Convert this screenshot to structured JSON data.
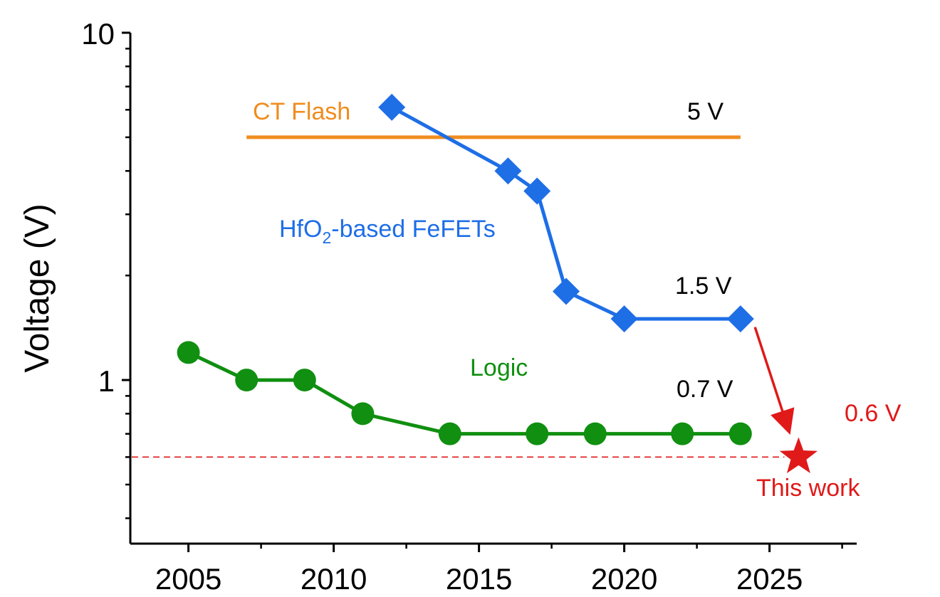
{
  "chart_data": {
    "type": "line",
    "title": "",
    "xlabel": "",
    "ylabel": "Voltage (V)",
    "yscale": "log",
    "xlim": [
      2003,
      2028
    ],
    "ylim": [
      0.338,
      10
    ],
    "x_ticks": [
      2005,
      2010,
      2015,
      2020,
      2025
    ],
    "x_tick_labels": [
      "2005",
      "2010",
      "2015",
      "2020",
      "2025"
    ],
    "y_ticks": [
      1,
      10
    ],
    "y_tick_labels": [
      "1",
      "10"
    ],
    "series": [
      {
        "name": "CT Flash",
        "color": "#f08c1e",
        "marker": "none",
        "x": [
          2007,
          2024
        ],
        "y": [
          5,
          5
        ],
        "label": "CT Flash",
        "value_label": "5 V"
      },
      {
        "name": "HfO2-based FeFETs",
        "color": "#1e6ee6",
        "marker": "diamond",
        "x": [
          2012,
          2016,
          2017,
          2018,
          2020,
          2024
        ],
        "y": [
          6.1,
          4.0,
          3.5,
          1.8,
          1.5,
          1.5
        ],
        "label_main": "HfO",
        "label_sub": "2",
        "label_rest": "-based FeFETs",
        "value_label": "1.5 V"
      },
      {
        "name": "Logic",
        "color": "#108f10",
        "marker": "circle",
        "x": [
          2005,
          2007,
          2009,
          2011,
          2014,
          2017,
          2019,
          2022,
          2024
        ],
        "y": [
          1.2,
          1.0,
          1.0,
          0.8,
          0.7,
          0.7,
          0.7,
          0.7,
          0.7
        ],
        "label": "Logic",
        "value_label": "0.7 V"
      }
    ],
    "this_work": {
      "x": 2026,
      "y": 0.6,
      "color": "#e01919",
      "marker": "star",
      "value_label": "0.6 V",
      "label": "This work",
      "arrow_from": {
        "x": 2024.5,
        "y": 1.42
      },
      "reference_line_y": 0.6
    }
  }
}
